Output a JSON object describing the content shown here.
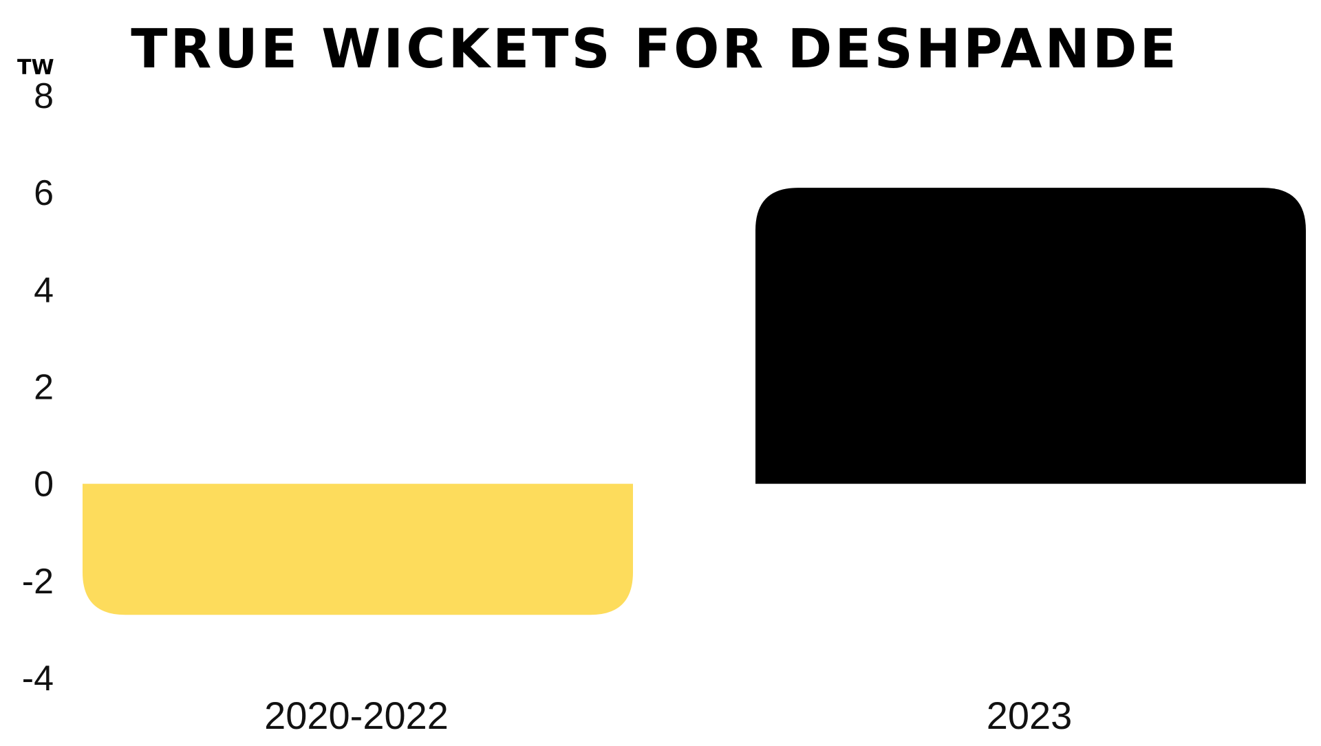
{
  "chart_data": {
    "type": "bar",
    "title": "TRUE WICKETS FOR DESHPANDE",
    "xlabel": "",
    "ylabel": "TW",
    "categories": [
      "2020-2022",
      "2023"
    ],
    "values": [
      -2.7,
      6.1
    ],
    "ylim": [
      -4,
      8
    ],
    "yticks": [
      8,
      6,
      4,
      2,
      0,
      -2,
      -4
    ],
    "ytick_labels": [
      "8",
      "6",
      "4",
      "2",
      "0",
      "-2",
      "-4"
    ],
    "grid": false,
    "legend": "none",
    "bar_colors": [
      "#FDDC5C",
      "#000000"
    ]
  }
}
